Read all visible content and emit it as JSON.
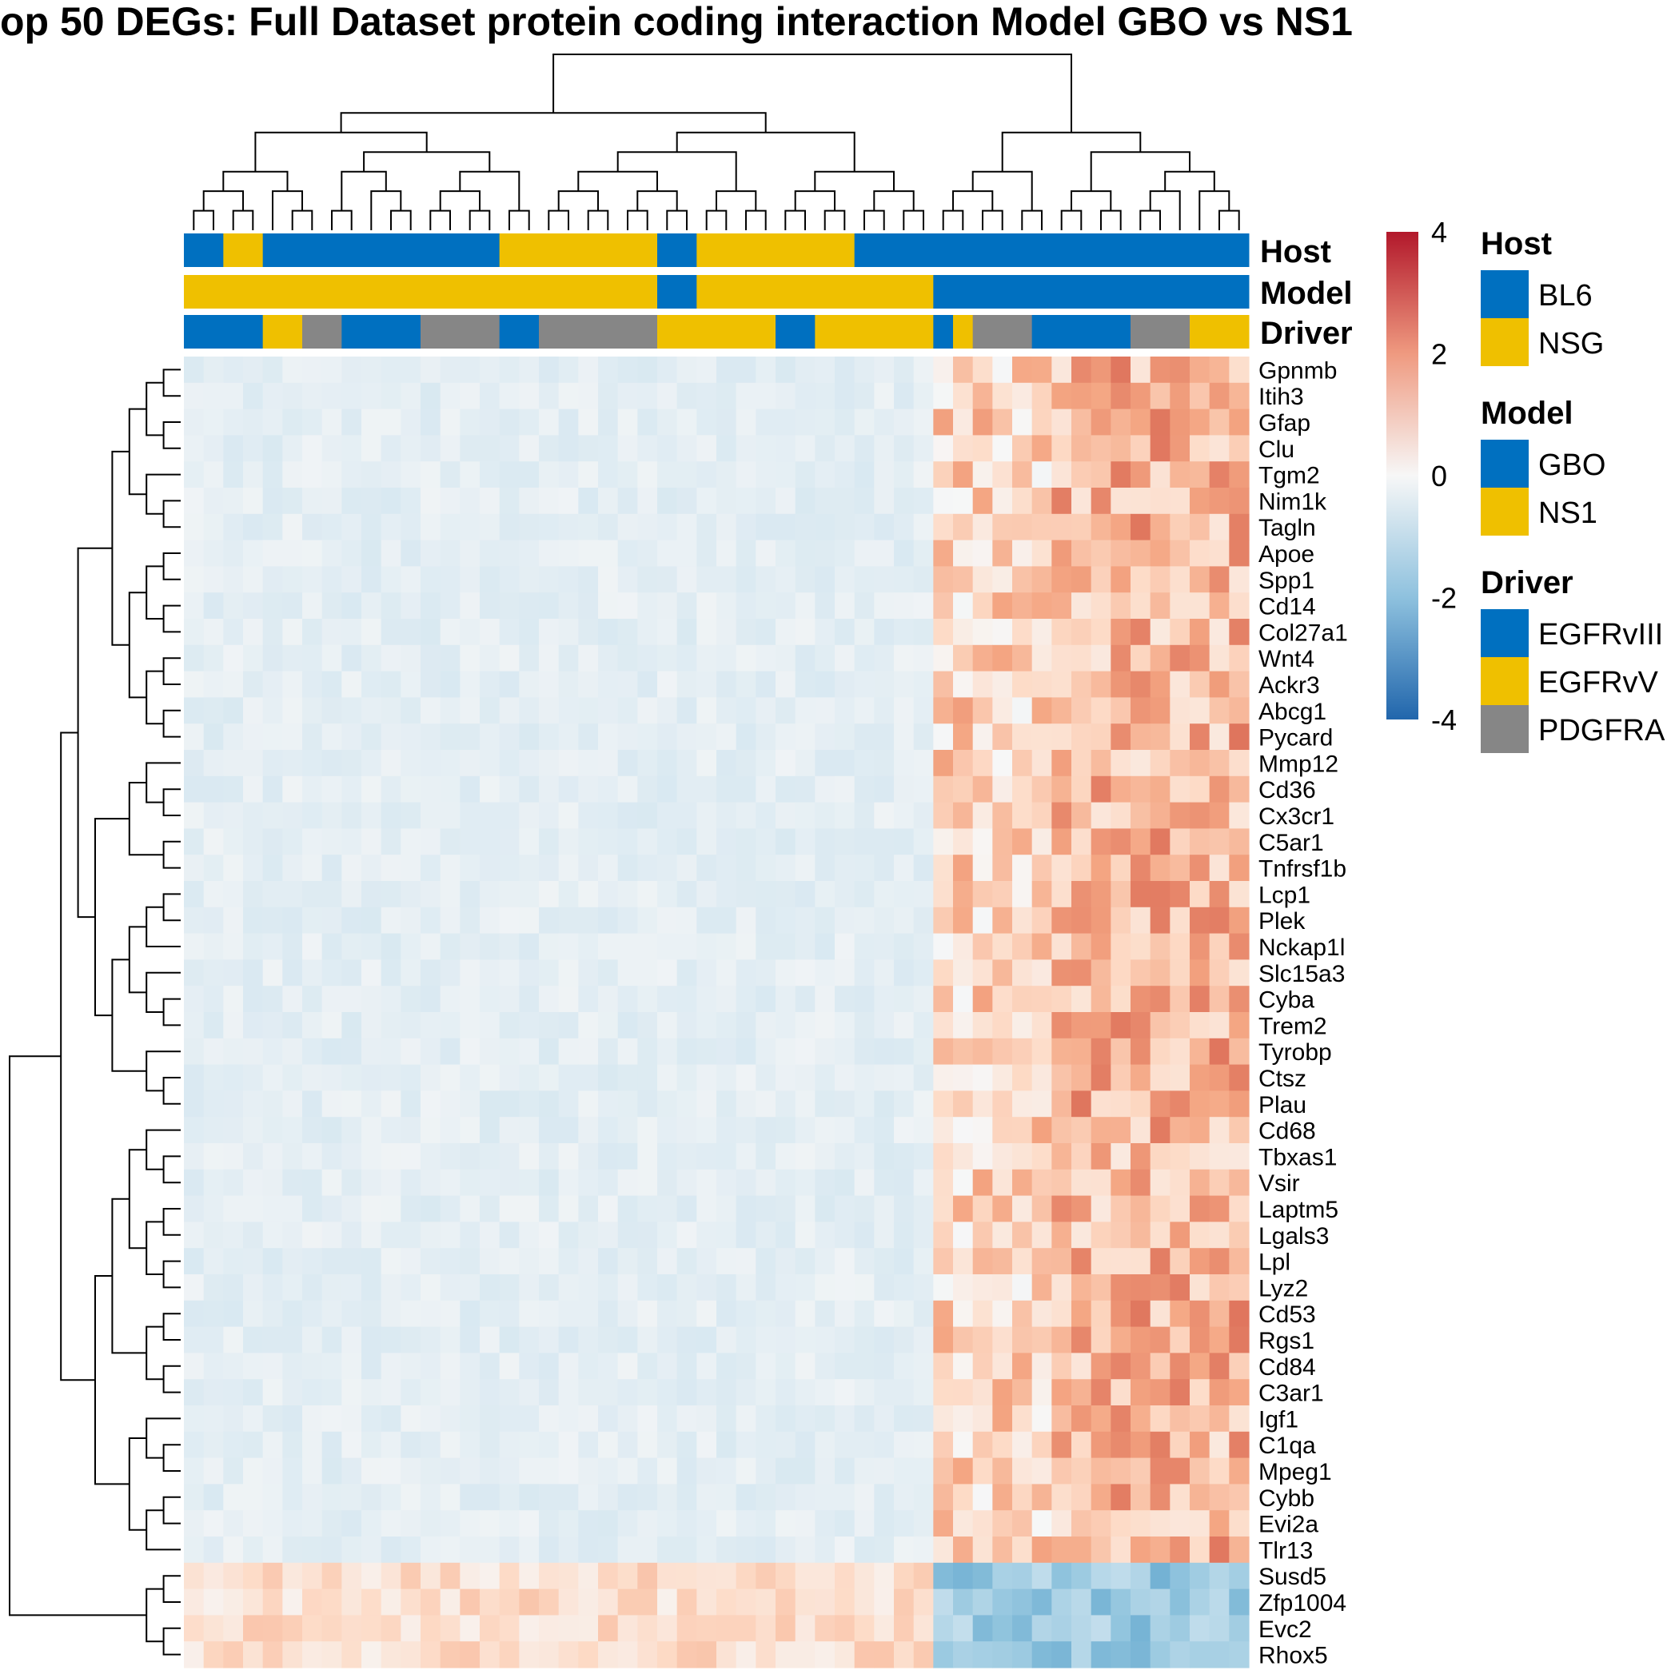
{
  "chart_data": {
    "type": "heatmap",
    "title": "op 50 DEGs: Full Dataset protein coding interaction Model GBO vs NS1",
    "n_samples": 54,
    "genes": [
      "Gpnmb",
      "Itih3",
      "Gfap",
      "Clu",
      "Tgm2",
      "Nim1k",
      "Tagln",
      "Apoe",
      "Spp1",
      "Cd14",
      "Col27a1",
      "Wnt4",
      "Ackr3",
      "Abcg1",
      "Pycard",
      "Mmp12",
      "Cd36",
      "Cx3cr1",
      "C5ar1",
      "Tnfrsf1b",
      "Lcp1",
      "Plek",
      "Nckap1l",
      "Slc15a3",
      "Cyba",
      "Trem2",
      "Tyrobp",
      "Ctsz",
      "Plau",
      "Cd68",
      "Tbxas1",
      "Vsir",
      "Laptm5",
      "Lgals3",
      "Lpl",
      "Lyz2",
      "Cd53",
      "Rgs1",
      "Cd84",
      "C3ar1",
      "Igf1",
      "C1qa",
      "Mpeg1",
      "Cybb",
      "Evi2a",
      "Tlr13",
      "Susd5",
      "Zfp1004",
      "Evc2",
      "Rhox5"
    ],
    "annotation_tracks": [
      {
        "name": "Host",
        "segments": [
          [
            "BL6",
            0,
            1
          ],
          [
            "NSG",
            1,
            2
          ],
          [
            "BL6",
            2,
            8
          ],
          [
            "NSG",
            8,
            12
          ],
          [
            "BL6",
            12,
            13
          ],
          [
            "NSG",
            13,
            17
          ],
          [
            "BL6",
            17,
            27
          ]
        ]
      },
      {
        "name": "Model",
        "segments": [
          [
            "NS1",
            0,
            12
          ],
          [
            "GBO",
            12,
            13
          ],
          [
            "NS1",
            13,
            19
          ],
          [
            "GBO",
            19,
            27
          ]
        ]
      },
      {
        "name": "Driver",
        "segments": [
          [
            "EGFRvIII",
            0,
            2
          ],
          [
            "EGFRvV",
            2,
            3
          ],
          [
            "PDGFRA",
            3,
            4
          ],
          [
            "EGFRvIII",
            4,
            6
          ],
          [
            "PDGFRA",
            6,
            8
          ],
          [
            "EGFRvIII",
            8,
            9
          ],
          [
            "PDGFRA",
            9,
            12
          ],
          [
            "EGFRvV",
            12,
            15
          ],
          [
            "EGFRvIII",
            15,
            16
          ],
          [
            "EGFRvV",
            16,
            19
          ],
          [
            "EGFRvIII",
            19,
            19.5
          ],
          [
            "EGFRvV",
            19.5,
            20
          ],
          [
            "PDGFRA",
            20,
            21.5
          ],
          [
            "EGFRvIII",
            21.5,
            24
          ],
          [
            "PDGFRA",
            24,
            25.5
          ],
          [
            "EGFRvV",
            25.5,
            27
          ]
        ]
      }
    ],
    "legends": [
      {
        "title": "Host",
        "items": [
          {
            "label": "BL6",
            "color": "#0070C0"
          },
          {
            "label": "NSG",
            "color": "#EFC000"
          }
        ]
      },
      {
        "title": "Model",
        "items": [
          {
            "label": "GBO",
            "color": "#0070C0"
          },
          {
            "label": "NS1",
            "color": "#EFC000"
          }
        ]
      },
      {
        "title": "Driver",
        "items": [
          {
            "label": "EGFRvIII",
            "color": "#0070C0"
          },
          {
            "label": "EGFRvV",
            "color": "#EFC000"
          },
          {
            "label": "PDGFRA",
            "color": "#868686"
          }
        ]
      }
    ],
    "color_scale": {
      "min": -4,
      "max": 4,
      "ticks": [
        4,
        2,
        0,
        -2,
        -4
      ],
      "colors": [
        "#2166AC",
        "#F7F7F7",
        "#B2182B"
      ]
    },
    "value_profile": {
      "columns_low_range": [
        0,
        19
      ],
      "columns_high_range": [
        19,
        27
      ],
      "typical_low_value": -0.5,
      "typical_high_value": 1.6,
      "inverse_genes": [
        "Susd5",
        "Zfp1004",
        "Evc2",
        "Rhox5"
      ]
    }
  }
}
